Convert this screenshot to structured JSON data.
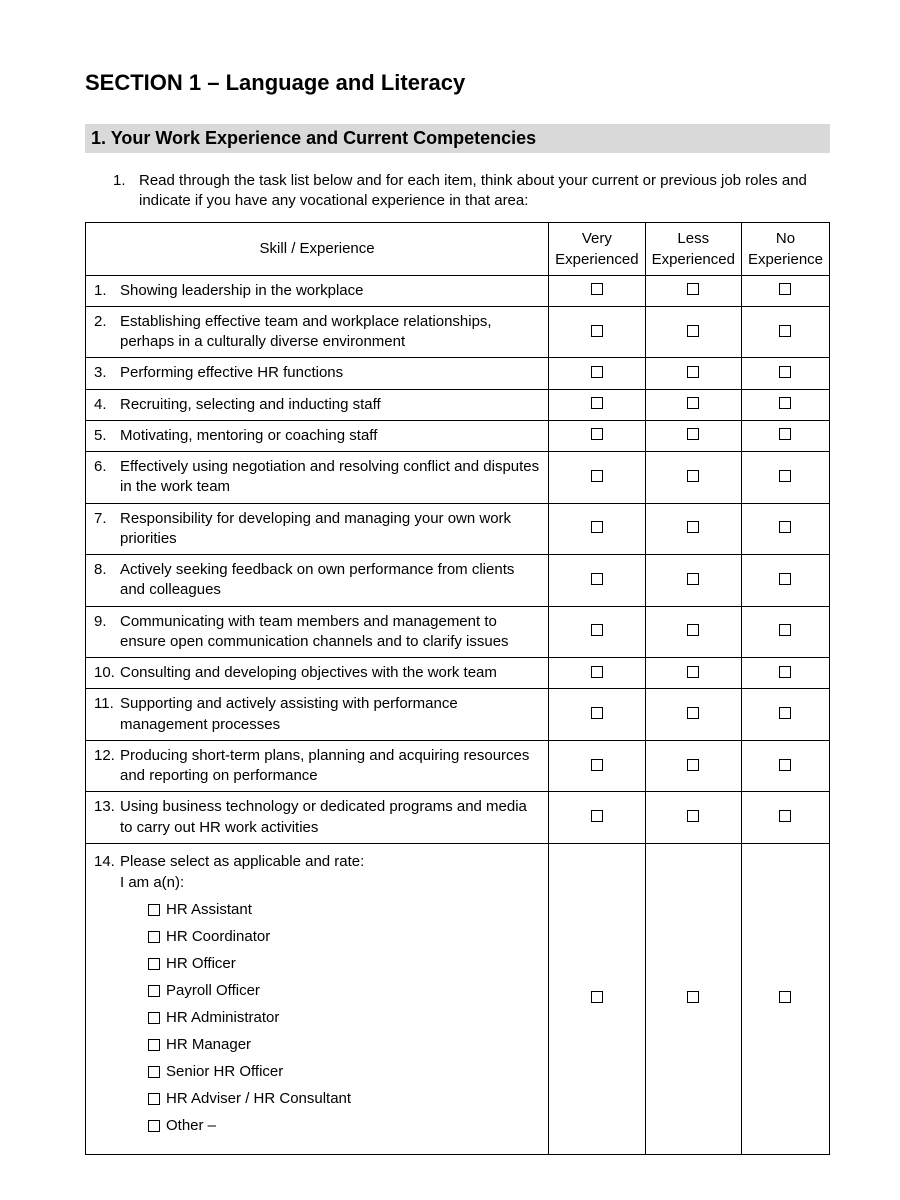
{
  "colors": {
    "text": "#000000",
    "background": "#ffffff",
    "subsection_bar": "#d9d9d9",
    "border": "#000000"
  },
  "typography": {
    "section_title_size_pt": 16,
    "subsection_size_pt": 14,
    "body_size_pt": 11,
    "font_family": "Arial"
  },
  "section": {
    "title": "SECTION 1 – Language and Literacy"
  },
  "subsection": {
    "title": "1. Your Work Experience and Current Competencies"
  },
  "instruction": {
    "number": "1.",
    "text": "Read through the task list below and for each item, think about your current or previous job roles and indicate if you have any vocational experience in that area:"
  },
  "table": {
    "headers": {
      "skill": "Skill / Experience",
      "col1": "Very Experienced",
      "col2": "Less Experienced",
      "col3": "No Experience"
    },
    "rows": [
      {
        "num": "1.",
        "text": "Showing leadership in the workplace"
      },
      {
        "num": "2.",
        "text": "Establishing effective team and workplace relationships, perhaps in a culturally diverse environment"
      },
      {
        "num": "3.",
        "text": "Performing effective HR functions"
      },
      {
        "num": "4.",
        "text": "Recruiting, selecting and inducting staff"
      },
      {
        "num": "5.",
        "text": "Motivating, mentoring or coaching staff"
      },
      {
        "num": "6.",
        "text": "Effectively using negotiation and  resolving conflict and disputes in the work team"
      },
      {
        "num": "7.",
        "text": "Responsibility for developing and managing your own work priorities"
      },
      {
        "num": "8.",
        "text": "Actively seeking feedback on own performance from clients and colleagues"
      },
      {
        "num": "9.",
        "text": "Communicating with team members and management to ensure open communication channels and to clarify issues"
      },
      {
        "num": "10.",
        "text": "Consulting and developing objectives with the work team"
      },
      {
        "num": "11.",
        "text": "Supporting and actively assisting with performance management processes"
      },
      {
        "num": "12.",
        "text": "Producing short-term plans, planning and acquiring resources and reporting on performance"
      },
      {
        "num": "13.",
        "text": "Using business technology or dedicated programs and media to carry out HR work activities"
      }
    ],
    "role_row": {
      "num": "14.",
      "lead": "Please select as applicable and rate:",
      "intro": "I am a(n):",
      "options": [
        "HR Assistant",
        "HR Coordinator",
        "HR Officer",
        "Payroll Officer",
        "HR Administrator",
        "HR Manager",
        "Senior HR Officer",
        "HR Adviser / HR Consultant",
        "Other –"
      ]
    }
  }
}
